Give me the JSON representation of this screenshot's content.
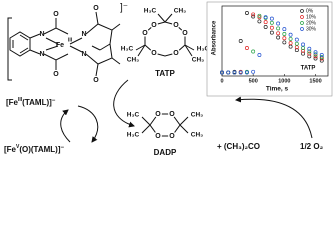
{
  "complex": {
    "metal": "Fe",
    "oxidation": "III",
    "charge": "]⁻",
    "atoms": [
      "N",
      "N",
      "N",
      "N",
      "O",
      "O",
      "O",
      "O"
    ]
  },
  "resting": {
    "parts": [
      "[Fe",
      "III",
      "(TAML)]",
      "−"
    ]
  },
  "active": {
    "parts": [
      "[Fe",
      "V",
      "(O)(TAML)]",
      "−"
    ]
  },
  "tatp": {
    "name": "TATP",
    "methyls": [
      "H₃C",
      "CH₃",
      "H₃C",
      "CH₃",
      "H₃C",
      "CH₃"
    ],
    "atoms": [
      "O",
      "O",
      "O",
      "O",
      "O",
      "O"
    ]
  },
  "dadp": {
    "name": "DADP",
    "methyls": [
      "H₃C",
      "H₃C",
      "CH₃",
      "CH₃"
    ],
    "atoms": [
      "O",
      "O",
      "O",
      "O"
    ]
  },
  "acetone": "+ (CH₃)₂CO",
  "oxygen": "1/2 O₂",
  "chart_data": {
    "type": "scatter",
    "x_label": "Time, s",
    "y_label": "Absorbance",
    "annotation": "TATP",
    "x": [
      0,
      100,
      200,
      300,
      400,
      500,
      600,
      700,
      800,
      900,
      1000,
      1100,
      1200,
      1300,
      1400,
      1500,
      1600
    ],
    "series": [
      {
        "name": "0%",
        "color": "#222222",
        "values": [
          0.05,
          0.05,
          0.06,
          0.5,
          0.9,
          0.85,
          0.78,
          0.7,
          0.62,
          0.55,
          0.48,
          0.42,
          0.37,
          0.32,
          0.28,
          0.25,
          0.22
        ]
      },
      {
        "name": "10%",
        "color": "#e02020",
        "values": [
          0.05,
          0.05,
          0.05,
          0.06,
          0.4,
          0.88,
          0.84,
          0.77,
          0.69,
          0.61,
          0.54,
          0.47,
          0.41,
          0.36,
          0.32,
          0.28,
          0.25
        ]
      },
      {
        "name": "20%",
        "color": "#20a040",
        "values": [
          0.05,
          0.05,
          0.05,
          0.05,
          0.06,
          0.35,
          0.86,
          0.83,
          0.76,
          0.68,
          0.6,
          0.53,
          0.46,
          0.4,
          0.35,
          0.31,
          0.27
        ]
      },
      {
        "name": "30%",
        "color": "#2050d0",
        "values": [
          0.05,
          0.05,
          0.05,
          0.05,
          0.05,
          0.06,
          0.3,
          0.84,
          0.82,
          0.75,
          0.67,
          0.59,
          0.52,
          0.45,
          0.39,
          0.34,
          0.3
        ]
      }
    ],
    "xlim": [
      0,
      1700
    ],
    "xticks": [
      0,
      500,
      1000,
      1500
    ],
    "ylim": [
      0,
      1
    ]
  }
}
